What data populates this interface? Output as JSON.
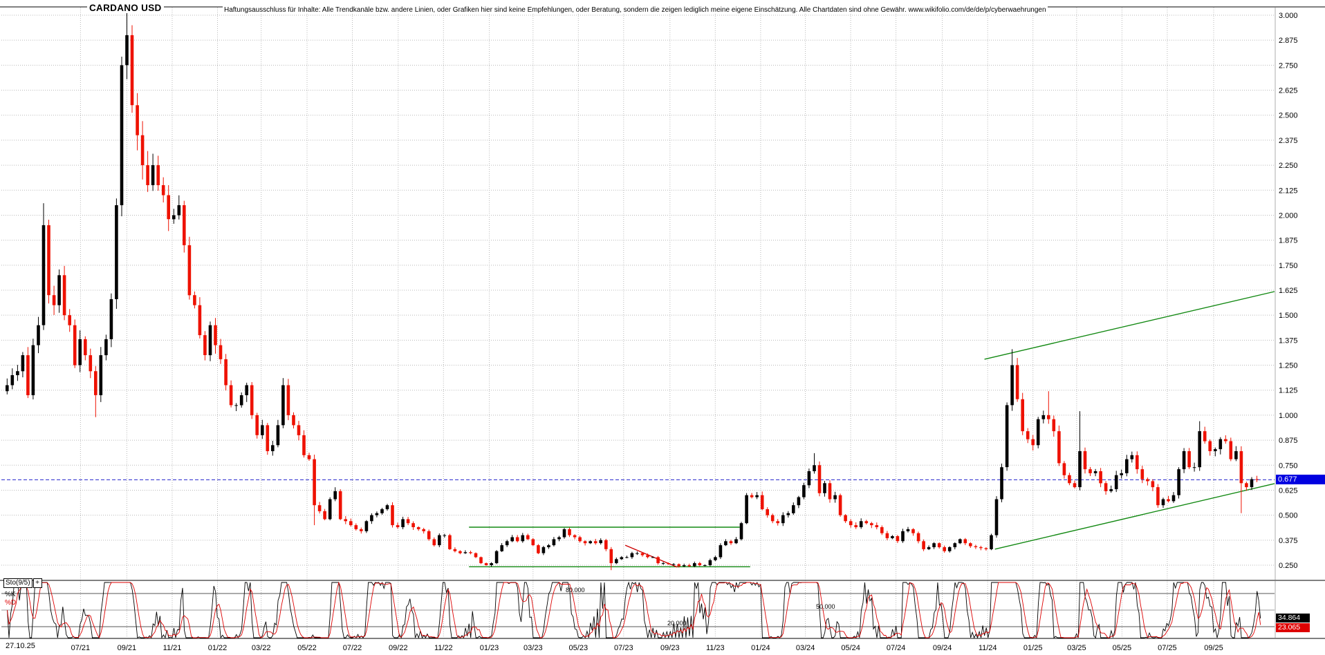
{
  "header": {
    "title": "CARDANO USD",
    "disclaimer": "Haftungsausschluss für Inhalte: Alle Trendkanäle bzw. andere Linien, oder Grafiken hier sind keine Empfehlungen, oder Beratung, sondern die zeigen lediglich meine eigene Einschätzung. Alle Chartdaten sind ohne Gewähr.  www.wikifolio.com/de/de/p/cyberwaehrungen"
  },
  "price_axis": {
    "ticks": [
      "3.000",
      "2.875",
      "2.750",
      "2.625",
      "2.500",
      "2.375",
      "2.250",
      "2.125",
      "2.000",
      "1.875",
      "1.750",
      "1.625",
      "1.500",
      "1.375",
      "1.250",
      "1.125",
      "1.000",
      "0.875",
      "0.750",
      "0.625",
      "0.500",
      "0.375",
      "0.250"
    ],
    "current_price": "0.677"
  },
  "time_axis": {
    "origin_label": "27.10.25",
    "labels": [
      "07/21",
      "09/21",
      "11/21",
      "01/22",
      "03/22",
      "05/22",
      "07/22",
      "09/22",
      "11/22",
      "01/23",
      "03/23",
      "05/23",
      "07/23",
      "09/23",
      "11/23",
      "01/24",
      "03/24",
      "05/24",
      "07/24",
      "09/24",
      "11/24",
      "01/25",
      "03/25",
      "05/25",
      "07/25",
      "09/25"
    ]
  },
  "indicator": {
    "label": "Sto(9/5)",
    "expand_icon": "+",
    "k_label": "%K",
    "d_label": "%D",
    "k_value": "34.864",
    "d_value": "23.065",
    "levels": [
      "80.000",
      "50.000",
      "20.000"
    ],
    "level_values": [
      80,
      50,
      20
    ]
  },
  "colors": {
    "up": "#000000",
    "down": "#ee1100",
    "trend_green": "#118811",
    "trend_red": "#cc0000",
    "current_price_line": "#2222cc",
    "price_tag_bg": "#0000e0",
    "k_tag_bg": "#000000",
    "d_tag_bg": "#dd0000",
    "grid": "#b8b8b8",
    "k_line": "#000000",
    "d_line": "#dd0000"
  },
  "chart_data": {
    "type": "candlestick",
    "title": "CARDANO USD",
    "interval": "weekly",
    "ylim": [
      0.25,
      3.0
    ],
    "y_tick_step": 0.125,
    "current_price": 0.677,
    "first_open": 1.12,
    "x_tick_week_offsets": [
      14.4,
      23.3,
      32.0,
      40.7,
      49.1,
      57.9,
      66.6,
      75.4,
      84.1,
      92.9,
      101.3,
      110.0,
      118.7,
      127.6,
      136.3,
      145.0,
      153.6,
      162.3,
      171.0,
      179.9,
      188.6,
      197.3,
      205.7,
      214.4,
      223.1,
      232.0
    ],
    "weekly_closes": [
      1.15,
      1.2,
      1.22,
      1.3,
      1.1,
      1.35,
      1.45,
      1.95,
      1.6,
      1.55,
      1.7,
      1.5,
      1.45,
      1.25,
      1.38,
      1.3,
      1.22,
      1.1,
      1.3,
      1.38,
      1.58,
      2.05,
      2.75,
      2.9,
      2.55,
      2.4,
      2.25,
      2.15,
      2.25,
      2.15,
      2.1,
      1.98,
      2.0,
      2.05,
      1.85,
      1.6,
      1.55,
      1.4,
      1.3,
      1.45,
      1.35,
      1.28,
      1.15,
      1.05,
      1.05,
      1.1,
      1.15,
      1.0,
      0.9,
      0.95,
      0.82,
      0.85,
      0.95,
      1.15,
      1.0,
      0.95,
      0.9,
      0.8,
      0.78,
      0.55,
      0.52,
      0.48,
      0.58,
      0.62,
      0.48,
      0.47,
      0.45,
      0.43,
      0.42,
      0.47,
      0.5,
      0.51,
      0.53,
      0.55,
      0.45,
      0.44,
      0.48,
      0.46,
      0.44,
      0.43,
      0.42,
      0.38,
      0.35,
      0.4,
      0.4,
      0.33,
      0.32,
      0.31,
      0.315,
      0.31,
      0.29,
      0.26,
      0.25,
      0.26,
      0.32,
      0.35,
      0.37,
      0.39,
      0.37,
      0.4,
      0.38,
      0.35,
      0.31,
      0.34,
      0.35,
      0.38,
      0.39,
      0.43,
      0.4,
      0.39,
      0.37,
      0.36,
      0.37,
      0.36,
      0.375,
      0.33,
      0.26,
      0.28,
      0.29,
      0.29,
      0.31,
      0.31,
      0.3,
      0.29,
      0.29,
      0.26,
      0.26,
      0.255,
      0.255,
      0.245,
      0.25,
      0.245,
      0.26,
      0.25,
      0.25,
      0.275,
      0.29,
      0.35,
      0.37,
      0.36,
      0.38,
      0.46,
      0.6,
      0.59,
      0.6,
      0.53,
      0.5,
      0.47,
      0.46,
      0.5,
      0.51,
      0.55,
      0.59,
      0.65,
      0.72,
      0.75,
      0.61,
      0.66,
      0.58,
      0.6,
      0.5,
      0.47,
      0.45,
      0.44,
      0.47,
      0.46,
      0.45,
      0.44,
      0.41,
      0.385,
      0.395,
      0.37,
      0.42,
      0.43,
      0.41,
      0.37,
      0.33,
      0.34,
      0.36,
      0.34,
      0.32,
      0.34,
      0.36,
      0.38,
      0.36,
      0.345,
      0.34,
      0.335,
      0.33,
      0.4,
      0.58,
      0.74,
      1.05,
      1.25,
      1.08,
      0.92,
      0.88,
      0.85,
      0.98,
      1.0,
      0.98,
      0.92,
      0.76,
      0.7,
      0.66,
      0.64,
      0.82,
      0.73,
      0.71,
      0.72,
      0.66,
      0.62,
      0.63,
      0.7,
      0.71,
      0.78,
      0.8,
      0.73,
      0.68,
      0.67,
      0.64,
      0.55,
      0.58,
      0.57,
      0.6,
      0.73,
      0.82,
      0.74,
      0.74,
      0.92,
      0.87,
      0.82,
      0.83,
      0.88,
      0.87,
      0.78,
      0.82,
      0.66,
      0.64,
      0.68,
      0.677
    ],
    "wick_overrides": {
      "7": {
        "high": 2.06
      },
      "17": {
        "low": 0.99
      },
      "23": {
        "high": 3.04
      },
      "24": {
        "high": 2.95
      },
      "59": {
        "low": 0.45
      },
      "116": {
        "low": 0.225
      },
      "155": {
        "high": 0.81
      },
      "193": {
        "high": 1.33
      },
      "200": {
        "high": 1.12
      },
      "206": {
        "high": 1.02
      },
      "229": {
        "high": 0.97
      },
      "237": {
        "low": 0.51
      }
    },
    "indicator": {
      "name": "Sto(9/5)",
      "k_period": 9,
      "d_period": 5,
      "last_k": 34.864,
      "last_d": 23.065,
      "levels": [
        80,
        50,
        20
      ]
    },
    "trend_lines": [
      {
        "color": "green",
        "type": "horizontal",
        "price": 0.44,
        "from_week": 89,
        "to_week": 141
      },
      {
        "color": "green",
        "type": "horizontal",
        "price": 0.242,
        "from_week": 89,
        "to_week": 143
      },
      {
        "color": "green",
        "type": "segment",
        "from": {
          "week": 188,
          "price": 1.28
        },
        "to": {
          "week": 244,
          "price": 1.62
        }
      },
      {
        "color": "green",
        "type": "segment",
        "from": {
          "week": 190,
          "price": 0.33
        },
        "to": {
          "week": 244,
          "price": 0.66
        }
      },
      {
        "color": "red",
        "type": "segment",
        "from": {
          "week": 119,
          "price": 0.35
        },
        "to": {
          "week": 129,
          "price": 0.24
        }
      }
    ]
  }
}
